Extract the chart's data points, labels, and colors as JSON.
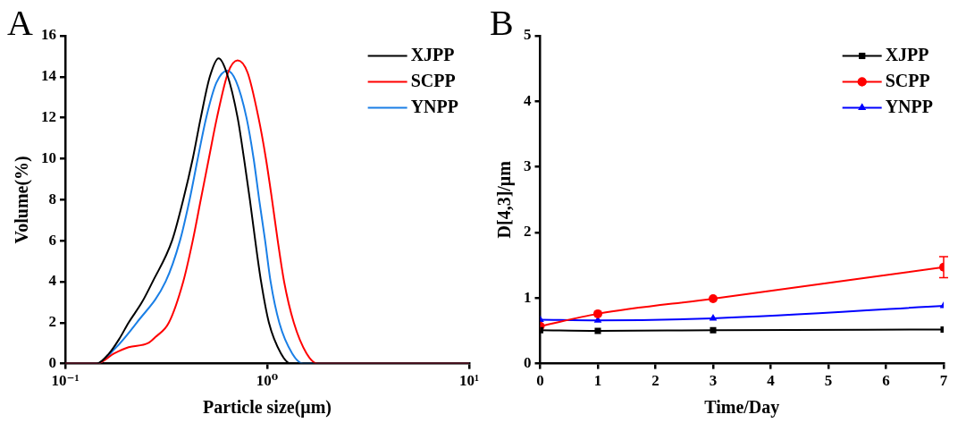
{
  "chart_data": [
    {
      "type": "line",
      "xlabel": "Particle size(μm)",
      "ylabel": "Volume(%)",
      "annotations": [
        "A"
      ],
      "log": "x",
      "xlim": [
        0.1,
        10
      ],
      "xticks": [
        {
          "value": 0.1,
          "label": "10⁻¹"
        },
        {
          "value": 1,
          "label": "10⁰"
        },
        {
          "value": 10,
          "label": "10¹"
        }
      ],
      "ylim": [
        0,
        16
      ],
      "yticks": [
        0,
        2,
        4,
        6,
        8,
        10,
        12,
        14,
        16
      ],
      "grid": false,
      "legend": "top right",
      "marker": "none",
      "line_style": "solid",
      "series": [
        {
          "name": "XJPP",
          "color": "#000000",
          "x": [
            0.1,
            0.143,
            0.165,
            0.185,
            0.206,
            0.24,
            0.271,
            0.338,
            0.384,
            0.428,
            0.469,
            0.52,
            0.575,
            0.63,
            0.714,
            0.768,
            0.821,
            0.873,
            0.933,
            1.02,
            1.17,
            1.31,
            10
          ],
          "values": [
            0,
            0,
            0.5,
            1.2,
            2,
            3,
            4,
            6,
            8,
            10,
            12,
            14,
            14.9,
            14.2,
            12,
            10,
            8,
            6,
            4,
            2,
            0.5,
            0,
            0
          ]
        },
        {
          "name": "SCPP",
          "color": "#ff0000",
          "x": [
            0.1,
            0.143,
            0.175,
            0.206,
            0.257,
            0.28,
            0.326,
            0.384,
            0.428,
            0.469,
            0.514,
            0.564,
            0.64,
            0.714,
            0.8,
            0.906,
            0.986,
            1.057,
            1.128,
            1.213,
            1.355,
            1.567,
            1.78,
            10
          ],
          "values": [
            0,
            0,
            0.5,
            0.8,
            1,
            1.3,
            2,
            4,
            6,
            8,
            10,
            12,
            14.2,
            14.8,
            14.2,
            12,
            10,
            8,
            6,
            4,
            2,
            0.5,
            0,
            0
          ]
        },
        {
          "name": "YNPP",
          "color": "#1a7fe6",
          "x": [
            0.1,
            0.143,
            0.175,
            0.226,
            0.314,
            0.37,
            0.413,
            0.453,
            0.499,
            0.56,
            0.635,
            0.7,
            0.79,
            0.857,
            0.913,
            0.977,
            1.04,
            1.148,
            1.33,
            1.51,
            10
          ],
          "values": [
            0,
            0,
            0.7,
            2,
            4,
            6,
            8,
            10,
            12,
            13.7,
            14.3,
            13.8,
            12,
            10,
            8,
            6,
            4,
            2,
            0.5,
            0,
            0
          ]
        }
      ]
    },
    {
      "type": "line",
      "xlabel": "Time/Day",
      "ylabel": "D[4,3]/μm",
      "annotations": [
        "B"
      ],
      "x": [
        0,
        1,
        3,
        7
      ],
      "xlim": [
        0,
        7
      ],
      "xticks": [
        0,
        1,
        2,
        3,
        4,
        5,
        6,
        7
      ],
      "ylim": [
        0,
        5
      ],
      "yticks": [
        0,
        1,
        2,
        3,
        4,
        5
      ],
      "grid": false,
      "legend": "top right",
      "line_style": "solid",
      "series": [
        {
          "name": "XJPP",
          "color": "#000000",
          "marker": "square",
          "values": [
            0.51,
            0.5,
            0.51,
            0.52
          ]
        },
        {
          "name": "SCPP",
          "color": "#ff0000",
          "marker": "circle",
          "values": [
            0.57,
            0.76,
            0.99,
            1.47
          ],
          "errors": [
            null,
            null,
            null,
            0.16
          ]
        },
        {
          "name": "YNPP",
          "color": "#0000ff",
          "marker": "triangle",
          "values": [
            0.67,
            0.66,
            0.69,
            0.88
          ]
        }
      ]
    }
  ]
}
